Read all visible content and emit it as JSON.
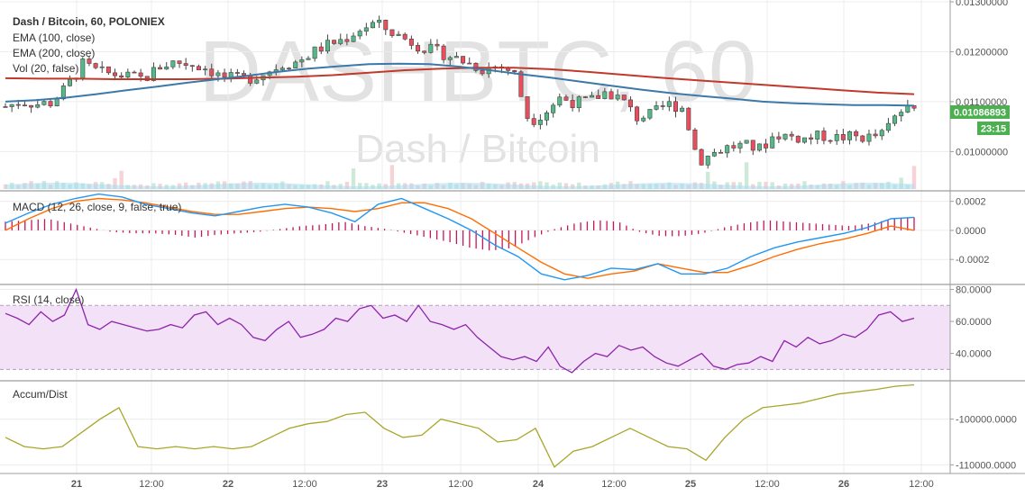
{
  "header": {
    "symbol_line": "Dash / Bitcoin, 60, POLONIEX",
    "indicators": [
      "EMA (100, close)",
      "EMA (200, close)",
      "Vol (20, false)"
    ]
  },
  "watermark": {
    "main": "DASHBTC, 60",
    "sub": "Dash / Bitcoin"
  },
  "price_badge": {
    "value": "0.01086893",
    "countdown": "23:15",
    "color": "#4caf50"
  },
  "panes": {
    "macd": {
      "label": "MACD (12, 26, close, 9, false, true)"
    },
    "rsi": {
      "label": "RSI (14, close)"
    },
    "accum": {
      "label": "Accum/Dist"
    }
  },
  "colors": {
    "up_candle": "#53b987",
    "down_candle": "#eb4d5c",
    "ema100": "#3c78a8",
    "ema200": "#c0392b",
    "macd_line": "#2196f3",
    "signal_line": "#ff6d00",
    "histogram": "#c2185b",
    "rsi_line": "#8e24aa",
    "rsi_band": "#f3e1f8",
    "accum_line": "#a8a62a",
    "volume": "#a8dcf0"
  },
  "chart_data": [
    {
      "type": "candlestick",
      "name": "price",
      "title": "Dash / Bitcoin, 60, POLONIEX",
      "x_ticks": [
        "21",
        "12:00",
        "22",
        "12:00",
        "23",
        "12:00",
        "24",
        "12:00",
        "25",
        "12:00",
        "26",
        "12:00"
      ],
      "y_ticks": [
        "0.01300000",
        "0.01200000",
        "0.01100000",
        "0.01000000"
      ],
      "ylim": [
        0.00925,
        0.013
      ],
      "close_path": [
        0.0109,
        0.011,
        0.01095,
        0.01098,
        0.0113,
        0.01175,
        0.0116,
        0.01155,
        0.0115,
        0.01145,
        0.0117,
        0.0118,
        0.01175,
        0.01168,
        0.0115,
        0.01145,
        0.01148,
        0.0116,
        0.01175,
        0.0118,
        0.012,
        0.01215,
        0.01225,
        0.01245,
        0.01258,
        0.0124,
        0.01225,
        0.0121,
        0.012,
        0.0119,
        0.01178,
        0.01165,
        0.01172,
        0.0116,
        0.0106,
        0.01078,
        0.01108,
        0.01098,
        0.01102,
        0.0112,
        0.01105,
        0.01068,
        0.01075,
        0.01095,
        0.01088,
        0.0098,
        0.00998,
        0.0101,
        0.01012,
        0.01005,
        0.01035,
        0.0103,
        0.01025,
        0.01032,
        0.01028,
        0.0103,
        0.01028,
        0.01035,
        0.0108,
        0.01087
      ],
      "ema100_path": [
        0.011,
        0.01103,
        0.01108,
        0.01115,
        0.01123,
        0.0113,
        0.01138,
        0.01145,
        0.01152,
        0.0116,
        0.01166,
        0.01171,
        0.01175,
        0.01176,
        0.01175,
        0.0117,
        0.01163,
        0.01155,
        0.01148,
        0.0114,
        0.01132,
        0.01124,
        0.01117,
        0.01111,
        0.01106,
        0.011,
        0.01097,
        0.01095,
        0.01093,
        0.01093,
        0.01092
      ],
      "ema200_path": [
        0.01147,
        0.01146,
        0.01146,
        0.01145,
        0.01145,
        0.01145,
        0.01146,
        0.01148,
        0.0115,
        0.01153,
        0.01158,
        0.01163,
        0.01166,
        0.01168,
        0.01168,
        0.01165,
        0.0116,
        0.01154,
        0.01148,
        0.01143,
        0.01138,
        0.01133,
        0.01128,
        0.01123,
        0.01118,
        0.01115
      ]
    },
    {
      "type": "line",
      "name": "macd",
      "title": "MACD (12, 26, close, 9, false, true)",
      "y_ticks": [
        "0.0002",
        "0.0000",
        "-0.0002"
      ],
      "ylim": [
        -0.00036,
        0.00026
      ],
      "macd_path": [
        5e-05,
        0.00012,
        0.00018,
        0.00022,
        0.00025,
        0.00023,
        0.00018,
        0.00015,
        0.00012,
        0.0001,
        0.00013,
        0.00016,
        0.00018,
        0.00016,
        0.00012,
        6e-05,
        0.00018,
        0.00022,
        0.00015,
        8e-05,
        0.0,
        -0.0001,
        -0.00018,
        -0.0003,
        -0.00034,
        -0.00031,
        -0.00026,
        -0.00027,
        -0.00023,
        -0.0003,
        -0.0003,
        -0.00026,
        -0.00018,
        -0.00012,
        -8e-05,
        -5e-05,
        -2e-05,
        2e-05,
        8e-05,
        9e-05
      ],
      "signal_path": [
        0.0,
        8e-05,
        0.00015,
        0.0002,
        0.00022,
        0.00021,
        0.00019,
        0.00016,
        0.00013,
        0.00011,
        0.00011,
        0.00013,
        0.00015,
        0.00016,
        0.00015,
        0.00013,
        0.00015,
        0.00019,
        0.00019,
        0.00015,
        8e-05,
        -2e-05,
        -0.00012,
        -0.00022,
        -0.0003,
        -0.00033,
        -0.0003,
        -0.00028,
        -0.00023,
        -0.00026,
        -0.00029,
        -0.00029,
        -0.00024,
        -0.00018,
        -0.00013,
        -9e-05,
        -6e-05,
        -2e-05,
        3e-05,
        0.0
      ],
      "histogram_values": [
        6e-05,
        7e-05,
        8e-05,
        5e-05,
        2e-05,
        -1e-05,
        -2e-05,
        -2e-05,
        -3e-05,
        -5e-05,
        -3e-05,
        -2e-05,
        -1e-05,
        1e-05,
        3e-05,
        4e-05,
        6e-05,
        3e-05,
        1e-05,
        -2e-05,
        -5e-05,
        -8e-05,
        -0.00012,
        -0.00014,
        -0.00012,
        -5e-05,
        1e-05,
        5e-05,
        7e-05,
        6e-05,
        -1e-05,
        -4e-05,
        -4e-05,
        -2e-05,
        2e-05,
        5e-05,
        7e-05,
        6e-05,
        5e-05,
        4e-05,
        3e-05,
        5e-05,
        8e-05,
        9e-05
      ]
    },
    {
      "type": "line",
      "name": "rsi",
      "title": "RSI (14, close)",
      "y_ticks": [
        "80.0000",
        "60.0000",
        "40.0000"
      ],
      "ylim": [
        24,
        82
      ],
      "band": [
        30,
        70
      ],
      "values": [
        65,
        62,
        58,
        66,
        60,
        64,
        80,
        58,
        55,
        60,
        58,
        56,
        54,
        55,
        58,
        56,
        64,
        66,
        58,
        62,
        58,
        50,
        48,
        55,
        60,
        50,
        52,
        55,
        62,
        60,
        68,
        70,
        62,
        64,
        60,
        70,
        60,
        58,
        55,
        58,
        50,
        44,
        38,
        36,
        38,
        35,
        44,
        32,
        28,
        35,
        40,
        38,
        45,
        42,
        44,
        38,
        34,
        32,
        36,
        40,
        32,
        30,
        33,
        34,
        38,
        35,
        48,
        44,
        50,
        46,
        48,
        52,
        50,
        55,
        64,
        66,
        60,
        62
      ]
    },
    {
      "type": "line",
      "name": "accum",
      "title": "Accum/Dist",
      "y_ticks": [
        "-100000.0000",
        "-110000.0000"
      ],
      "ylim": [
        -111500,
        -92000
      ],
      "values": [
        -104000,
        -106000,
        -106500,
        -106000,
        -103000,
        -100000,
        -97500,
        -106000,
        -106500,
        -106000,
        -106500,
        -106000,
        -106500,
        -106000,
        -104000,
        -102000,
        -101000,
        -100500,
        -99000,
        -98500,
        -102000,
        -104000,
        -103500,
        -100000,
        -101000,
        -102000,
        -105000,
        -104500,
        -102000,
        -110500,
        -107000,
        -106000,
        -104000,
        -102000,
        -104000,
        -106000,
        -106500,
        -109000,
        -104000,
        -100000,
        -97500,
        -97000,
        -96500,
        -95500,
        -94500,
        -94000,
        -93500,
        -92800,
        -92500
      ]
    }
  ]
}
